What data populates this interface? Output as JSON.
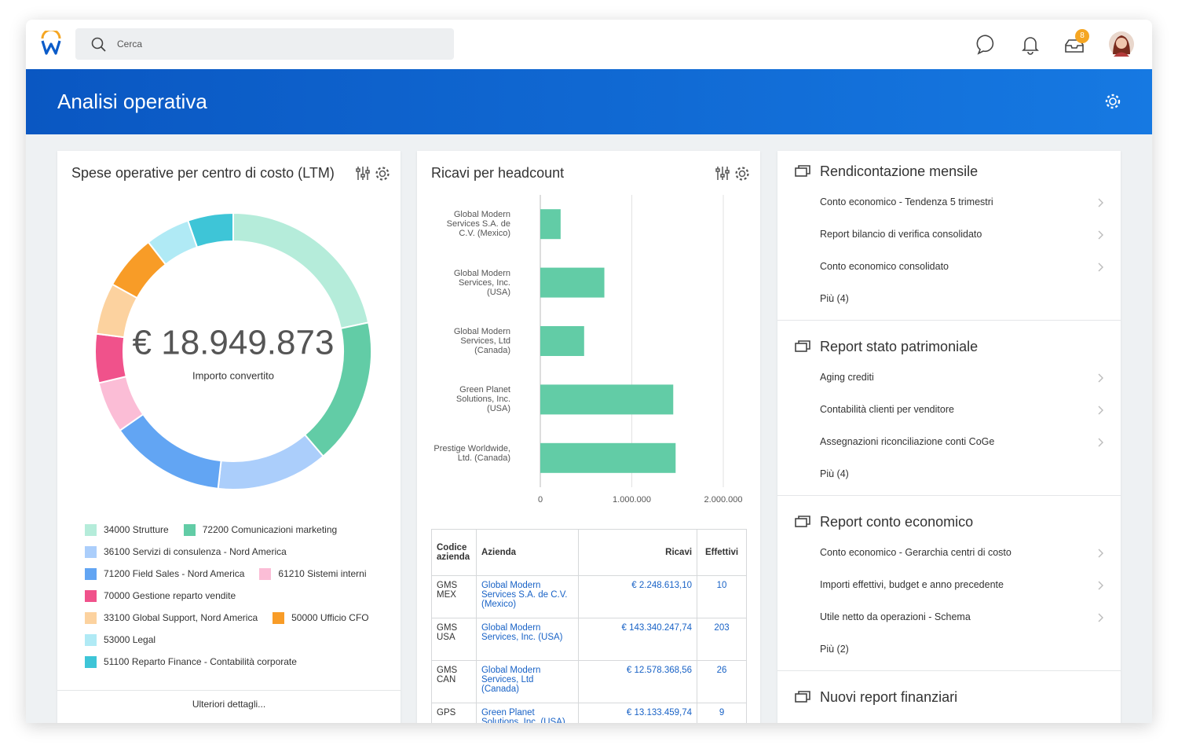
{
  "header": {
    "search_placeholder": "Cerca",
    "inbox_badge": "8"
  },
  "banner": {
    "title": "Analisi operativa"
  },
  "chart_data": [
    {
      "type": "donut",
      "title": "Spese operative per centro di costo (LTM)",
      "center_value": "€ 18.949.873",
      "center_label": "Importo convertito",
      "categories": [
        "34000 Strutture",
        "72200 Comunicazioni marketing",
        "36100 Servizi di consulenza - Nord America",
        "71200 Field Sales - Nord America",
        "61210 Sistemi interni",
        "70000 Gestione reparto vendite",
        "33100 Global Support, Nord America",
        "50000 Ufficio CFO",
        "53000 Legal",
        "51100 Reparto Finance - Contabilità corporate"
      ],
      "values": [
        21.6,
        17,
        13,
        13.5,
        6,
        5.7,
        6,
        6.4,
        5.2,
        5.3
      ],
      "colors": [
        "#b5ecda",
        "#62cca6",
        "#abcefb",
        "#62a5f3",
        "#fbbdd6",
        "#f0528b",
        "#fcd29f",
        "#f89c27",
        "#b0eaf5",
        "#3ec5d7"
      ],
      "footer_link": "Ulteriori dettagli..."
    },
    {
      "type": "hbar",
      "title": "Ricavi per headcount",
      "categories": [
        "Global Modern Services S.A. de C.V. (Mexico)",
        "Global Modern Services, Inc. (USA)",
        "Global Modern Services, Ltd (Canada)",
        "Green Planet Solutions, Inc. (USA)",
        "Prestige Worldwide, Ltd. (Canada)"
      ],
      "values": [
        222000,
        700000,
        479000,
        1453000,
        1479000
      ],
      "color": "#62cca6",
      "xlim": [
        0,
        2000000
      ],
      "xticks": [
        0,
        {
          "value": 1000000,
          "label": "1.000.000"
        },
        {
          "value": 2000000,
          "label": "2.000.000"
        }
      ],
      "grid": true
    }
  ],
  "table": {
    "headers": [
      "Codice azienda",
      "Azienda",
      "Ricavi",
      "Effettivi"
    ],
    "rows": [
      [
        "GMS MEX",
        "Global Modern Services S.A. de C.V. (Mexico)",
        "€ 2.248.613,10",
        "10"
      ],
      [
        "GMS USA",
        "Global Modern Services, Inc. (USA)",
        "€ 143.340.247,74",
        "203"
      ],
      [
        "GMS CAN",
        "Global Modern Services, Ltd (Canada)",
        "€ 12.578.368,56",
        "26"
      ],
      [
        "GPS",
        "Green Planet Solutions, Inc. (USA)",
        "€ 13.133.459,74",
        "9"
      ]
    ]
  },
  "reports": {
    "sections": [
      {
        "title": "Rendicontazione mensile",
        "items": [
          "Conto economico - Tendenza 5 trimestri",
          "Report bilancio di verifica consolidato",
          "Conto economico consolidato"
        ],
        "more": "Più (4)"
      },
      {
        "title": "Report stato patrimoniale",
        "items": [
          "Aging crediti",
          "Contabilità clienti per venditore",
          "Assegnazioni riconciliazione conti CoGe"
        ],
        "more": "Più (4)"
      },
      {
        "title": "Report conto economico",
        "items": [
          "Conto economico - Gerarchia centri di costo",
          "Importi effettivi, budget e anno precedente",
          "Utile netto da operazioni - Schema"
        ],
        "more": "Più (2)"
      },
      {
        "title": "Nuovi report finanziari"
      }
    ]
  }
}
